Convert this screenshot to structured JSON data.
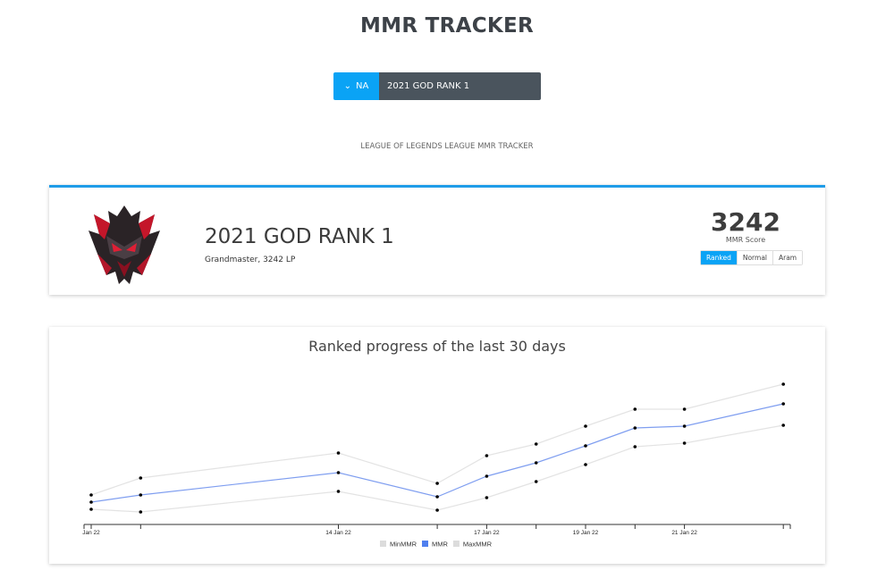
{
  "header": {
    "title": "MMR TRACKER"
  },
  "search": {
    "region": "NA",
    "summoner": "2021 GOD RANK 1",
    "subtitle": "LEAGUE OF LEGENDS LEAGUE MMR TRACKER"
  },
  "profile": {
    "name": "2021 GOD RANK 1",
    "rank_text": "Grandmaster, 3242 LP",
    "mmr": "3242",
    "mmr_label": "MMR Score",
    "modes": [
      "Ranked",
      "Normal",
      "Aram"
    ],
    "active_mode": "Ranked",
    "emblem": "grandmaster-emblem"
  },
  "colors": {
    "accent": "#0aa3f5",
    "mmr_line": "#7f9ef0",
    "band_line": "#e3e3e3"
  },
  "chart_data": {
    "type": "line",
    "title": "Ranked progress of the last 30 days",
    "x": [
      "2022-01-09",
      "2022-01-10",
      "2022-01-14",
      "2022-01-16",
      "2022-01-17",
      "2022-01-18",
      "2022-01-19",
      "2022-01-20",
      "2022-01-21",
      "2022-01-23"
    ],
    "tick_labels": [
      "Jan 22",
      "",
      "14 Jan 22",
      "",
      "17 Jan 22",
      "",
      "19 Jan 22",
      "",
      "21 Jan 22",
      ""
    ],
    "series": [
      {
        "name": "MinMMR",
        "color": "#e3e3e3",
        "values": [
          2652,
          2637,
          2752,
          2647,
          2717,
          2807,
          2902,
          3002,
          3022,
          3122
        ]
      },
      {
        "name": "MMR",
        "color": "#7f9ef0",
        "values": [
          2692,
          2732,
          2857,
          2722,
          2837,
          2912,
          3007,
          3107,
          3117,
          3242
        ]
      },
      {
        "name": "MaxMMR",
        "color": "#e3e3e3",
        "values": [
          2732,
          2827,
          2967,
          2797,
          2952,
          3017,
          3117,
          3212,
          3212,
          3352
        ]
      }
    ],
    "legend": "bottom-center",
    "grid": false,
    "y_axis_visible": false
  }
}
